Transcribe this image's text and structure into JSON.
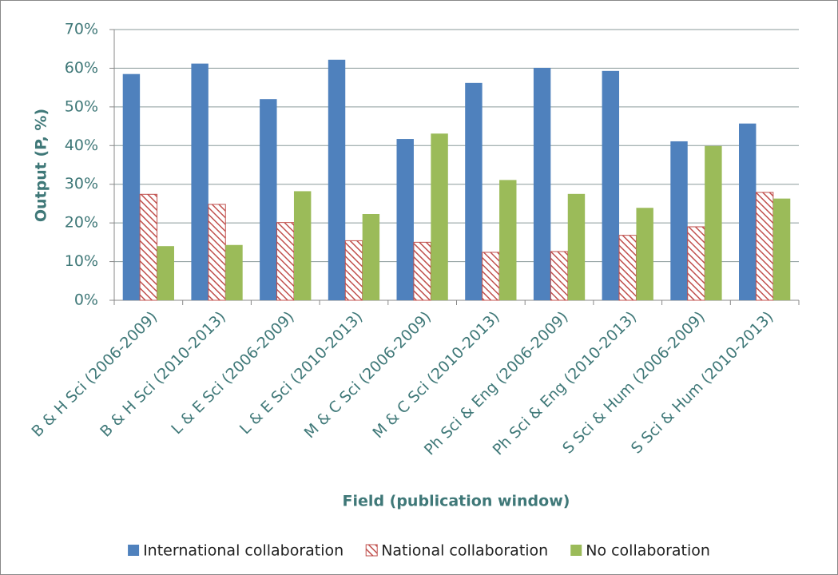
{
  "chart_data": {
    "type": "bar",
    "x_label": "Field (publication window)",
    "y_label": "Output (P, %)",
    "categories": [
      "B & H Sci (2006-2009)",
      "B & H Sci (2010-2013)",
      "L & E Sci (2006-2009)",
      "L & E Sci (2010-2013)",
      "M & C Sci (2006-2009)",
      "M & C Sci (2010-2013)",
      "Ph Sci & Eng (2006-2009)",
      "Ph Sci & Eng (2010-2013)",
      "S Sci & Hum (2006-2009)",
      "S Sci & Hum (2010-2013)"
    ],
    "series": [
      {
        "name": "International collaboration",
        "color": "#4f81bd",
        "values": [
          58.5,
          61.2,
          52,
          62.2,
          41.7,
          56.2,
          60.1,
          59.3,
          41.1,
          45.7
        ]
      },
      {
        "name": "National collaboration",
        "color": "#c0504d",
        "pattern": "hatch",
        "values": [
          27.4,
          24.8,
          20.1,
          15.4,
          15.0,
          12.4,
          12.6,
          16.8,
          19.0,
          27.9
        ]
      },
      {
        "name": "No collaboration",
        "color": "#9bbb59",
        "values": [
          14.0,
          14.3,
          28.2,
          22.3,
          43.1,
          31.1,
          27.5,
          23.9,
          39.9,
          26.3
        ]
      }
    ],
    "ylim": [
      0,
      70
    ],
    "yticks": [
      {
        "value": 0,
        "label": "0%"
      },
      {
        "value": 10,
        "label": "10%"
      },
      {
        "value": 20,
        "label": "20%"
      },
      {
        "value": 30,
        "label": "30%"
      },
      {
        "value": 40,
        "label": "40%"
      },
      {
        "value": 50,
        "label": "50%"
      },
      {
        "value": 60,
        "label": "60%"
      },
      {
        "value": 70,
        "label": "70%"
      }
    ],
    "grid": true,
    "legend": "bottom"
  }
}
